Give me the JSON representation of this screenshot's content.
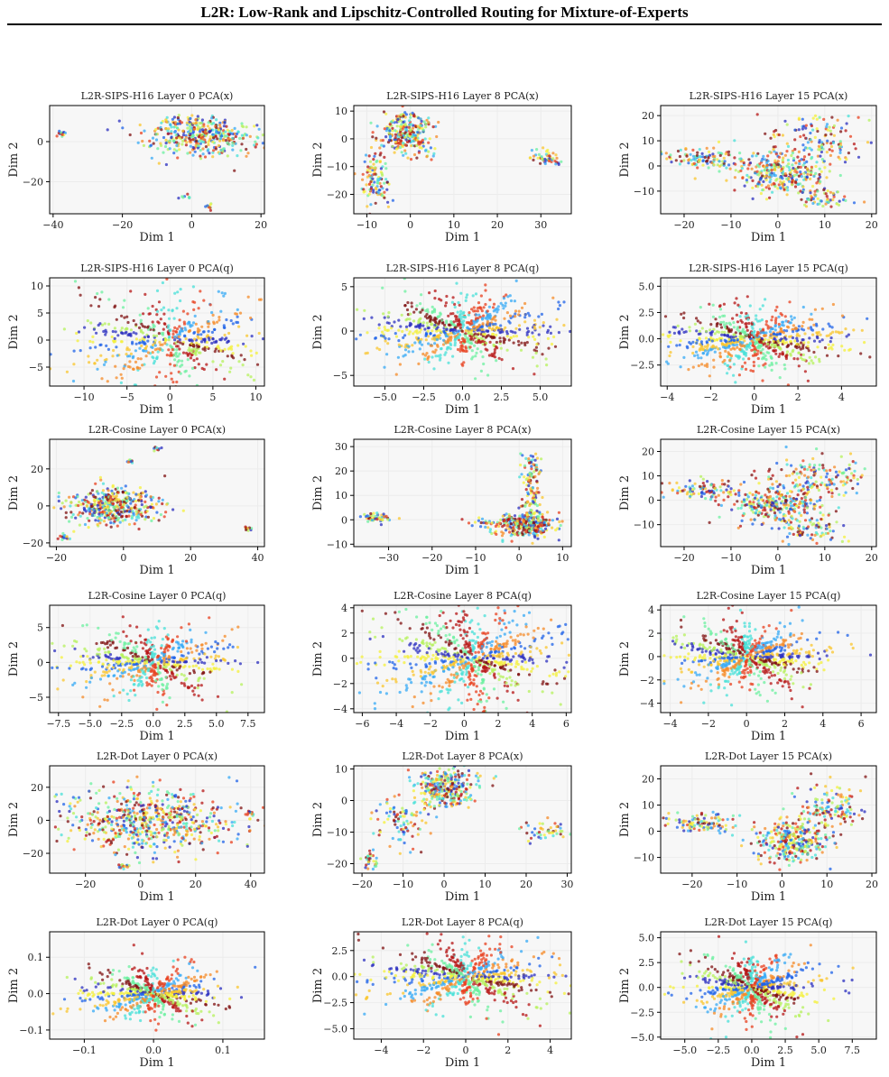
{
  "page": {
    "header_title": "L2R: Low-Rank and Lipschitz-Controlled Routing for Mixture-of-Experts"
  },
  "palette": [
    "#2b2fbf",
    "#1f63e8",
    "#35a9f5",
    "#48e0d8",
    "#6cf0a0",
    "#b5f25c",
    "#f4f03a",
    "#f9c52e",
    "#f68b28",
    "#e8401f",
    "#b51515",
    "#7f1010"
  ],
  "chart_data": [
    {
      "type": "scatter",
      "title": "L2R-SIPS-H16  Layer 0  PCA(x)",
      "xlabel": "Dim 1",
      "ylabel": "Dim 2",
      "xlim": [
        -41,
        21
      ],
      "ylim": [
        -36,
        18
      ],
      "xticks": [
        -40,
        -20,
        0,
        20
      ],
      "yticks": [
        -20,
        0
      ],
      "xtick_labels": [
        "−40",
        "−20",
        "0",
        "20"
      ],
      "ytick_labels": [
        "−20",
        "0"
      ],
      "point_clouds": [
        {
          "kind": "blob",
          "cx": 2,
          "cy": 3,
          "sx": 8,
          "sy": 5,
          "n": 420
        },
        {
          "kind": "blob",
          "cx": -38,
          "cy": 4,
          "sx": 1,
          "sy": 1,
          "n": 12
        },
        {
          "kind": "blob",
          "cx": 5,
          "cy": -32,
          "sx": 0.7,
          "sy": 0.7,
          "n": 10
        },
        {
          "kind": "blob",
          "cx": -2,
          "cy": -28,
          "sx": 0.8,
          "sy": 0.8,
          "n": 8
        }
      ]
    },
    {
      "type": "scatter",
      "title": "L2R-SIPS-H16  Layer 8  PCA(x)",
      "xlabel": "Dim 1",
      "ylabel": "Dim 2",
      "xlim": [
        -13,
        37
      ],
      "ylim": [
        -27,
        12
      ],
      "xticks": [
        -10,
        0,
        10,
        20,
        30
      ],
      "yticks": [
        -20,
        -10,
        0,
        10
      ],
      "xtick_labels": [
        "−10",
        "0",
        "10",
        "20",
        "30"
      ],
      "ytick_labels": [
        "−20",
        "−10",
        "0",
        "10"
      ],
      "point_clouds": [
        {
          "kind": "blob",
          "cx": -1,
          "cy": 2,
          "sx": 3,
          "sy": 4,
          "n": 280
        },
        {
          "kind": "blob",
          "cx": -8,
          "cy": -15,
          "sx": 1.5,
          "sy": 5,
          "n": 110
        },
        {
          "kind": "blob",
          "cx": 31,
          "cy": -7,
          "sx": 2,
          "sy": 1.5,
          "n": 50
        }
      ]
    },
    {
      "type": "scatter",
      "title": "L2R-SIPS-H16  Layer 15  PCA(x)",
      "xlabel": "Dim 1",
      "ylabel": "Dim 2",
      "xlim": [
        -25,
        21
      ],
      "ylim": [
        -19,
        24
      ],
      "xticks": [
        -20,
        -10,
        0,
        10,
        20
      ],
      "yticks": [
        -10,
        0,
        10,
        20
      ],
      "xtick_labels": [
        "−20",
        "−10",
        "0",
        "10",
        "20"
      ],
      "ytick_labels": [
        "−10",
        "0",
        "10",
        "20"
      ],
      "point_clouds": [
        {
          "kind": "blob",
          "cx": 0,
          "cy": -3,
          "sx": 5,
          "sy": 4,
          "n": 300
        },
        {
          "kind": "blob",
          "cx": -16,
          "cy": 3,
          "sx": 4,
          "sy": 2,
          "n": 110
        },
        {
          "kind": "blob",
          "cx": 8,
          "cy": 10,
          "sx": 5,
          "sy": 5,
          "n": 140
        },
        {
          "kind": "blob",
          "cx": 10,
          "cy": -13,
          "sx": 3,
          "sy": 2,
          "n": 60
        }
      ]
    },
    {
      "type": "scatter",
      "title": "L2R-SIPS-H16  Layer 0  PCA(q)",
      "xlabel": "Dim 1",
      "ylabel": "Dim 2",
      "xlim": [
        -14,
        11
      ],
      "ylim": [
        -8.5,
        11.5
      ],
      "xticks": [
        -10,
        -5,
        0,
        5,
        10
      ],
      "yticks": [
        -5,
        0,
        5,
        10
      ],
      "xtick_labels": [
        "−10",
        "−5",
        "0",
        "5",
        "10"
      ],
      "ytick_labels": [
        "−5",
        "0",
        "5",
        "10"
      ],
      "point_clouds": [
        {
          "kind": "star",
          "cx": 0,
          "cy": 0,
          "r": 7,
          "n": 600
        }
      ]
    },
    {
      "type": "scatter",
      "title": "L2R-SIPS-H16  Layer 8  PCA(q)",
      "xlabel": "Dim 1",
      "ylabel": "Dim 2",
      "xlim": [
        -7,
        7
      ],
      "ylim": [
        -6.2,
        6
      ],
      "xticks": [
        -5,
        -2.5,
        0,
        2.5,
        5
      ],
      "yticks": [
        -5,
        0,
        5
      ],
      "xtick_labels": [
        "−5.0",
        "−2.5",
        "0.0",
        "2.5",
        "5.0"
      ],
      "ytick_labels": [
        "−5",
        "0",
        "5"
      ],
      "point_clouds": [
        {
          "kind": "star",
          "cx": 0,
          "cy": 0,
          "r": 3.6,
          "n": 800
        }
      ]
    },
    {
      "type": "scatter",
      "title": "L2R-SIPS-H16  Layer 15  PCA(q)",
      "xlabel": "Dim 1",
      "ylabel": "Dim 2",
      "xlim": [
        -4.3,
        5.6
      ],
      "ylim": [
        -4.5,
        5.8
      ],
      "xticks": [
        -4,
        -2,
        0,
        2,
        4
      ],
      "yticks": [
        -2.5,
        0,
        2.5,
        5
      ],
      "xtick_labels": [
        "−4",
        "−2",
        "0",
        "2",
        "4"
      ],
      "ytick_labels": [
        "−2.5",
        "0.0",
        "2.5",
        "5.0"
      ],
      "point_clouds": [
        {
          "kind": "star",
          "cx": 0,
          "cy": 0,
          "r": 2.5,
          "n": 800
        }
      ]
    },
    {
      "type": "scatter",
      "title": "L2R-Cosine  Layer 0  PCA(x)",
      "xlabel": "Dim 1",
      "ylabel": "Dim 2",
      "xlim": [
        -22,
        42
      ],
      "ylim": [
        -22,
        36
      ],
      "xticks": [
        -20,
        0,
        20,
        40
      ],
      "yticks": [
        -20,
        0,
        20
      ],
      "xtick_labels": [
        "−20",
        "0",
        "20",
        "40"
      ],
      "ytick_labels": [
        "−20",
        "0",
        "20"
      ],
      "point_clouds": [
        {
          "kind": "blob",
          "cx": -3,
          "cy": 0,
          "sx": 7,
          "sy": 5,
          "n": 420
        },
        {
          "kind": "blob",
          "cx": -18,
          "cy": -17,
          "sx": 1,
          "sy": 1,
          "n": 14
        },
        {
          "kind": "blob",
          "cx": 37,
          "cy": -12,
          "sx": 0.6,
          "sy": 0.8,
          "n": 10
        },
        {
          "kind": "blob",
          "cx": 10,
          "cy": 31,
          "sx": 0.6,
          "sy": 0.6,
          "n": 8
        },
        {
          "kind": "blob",
          "cx": 2,
          "cy": 24,
          "sx": 0.6,
          "sy": 0.6,
          "n": 8
        }
      ]
    },
    {
      "type": "scatter",
      "title": "L2R-Cosine  Layer 8  PCA(x)",
      "xlabel": "Dim 1",
      "ylabel": "Dim 2",
      "xlim": [
        -38,
        12
      ],
      "ylim": [
        -11,
        33
      ],
      "xticks": [
        -30,
        -20,
        -10,
        0,
        10
      ],
      "yticks": [
        -10,
        0,
        10,
        20,
        30
      ],
      "xtick_labels": [
        "−30",
        "−20",
        "−10",
        "0",
        "10"
      ],
      "ytick_labels": [
        "−10",
        "0",
        "10",
        "20",
        "30"
      ],
      "point_clouds": [
        {
          "kind": "blob",
          "cx": 2,
          "cy": -2,
          "sx": 3,
          "sy": 2.5,
          "n": 300
        },
        {
          "kind": "blob",
          "cx": 3,
          "cy": 15,
          "sx": 1.3,
          "sy": 7,
          "n": 120
        },
        {
          "kind": "blob",
          "cx": -33,
          "cy": 1,
          "sx": 2,
          "sy": 1,
          "n": 50
        },
        {
          "kind": "blob",
          "cx": -6,
          "cy": -1,
          "sx": 4,
          "sy": 1,
          "n": 40
        }
      ]
    },
    {
      "type": "scatter",
      "title": "L2R-Cosine  Layer 15  PCA(x)",
      "xlabel": "Dim 1",
      "ylabel": "Dim 2",
      "xlim": [
        -25,
        21
      ],
      "ylim": [
        -19,
        25
      ],
      "xticks": [
        -20,
        -10,
        0,
        10,
        20
      ],
      "yticks": [
        -10,
        0,
        10,
        20
      ],
      "xtick_labels": [
        "−20",
        "−10",
        "0",
        "10",
        "20"
      ],
      "ytick_labels": [
        "−10",
        "0",
        "10",
        "20"
      ],
      "point_clouds": [
        {
          "kind": "blob",
          "cx": 0,
          "cy": -2,
          "sx": 5,
          "sy": 4,
          "n": 300
        },
        {
          "kind": "blob",
          "cx": -16,
          "cy": 4,
          "sx": 4,
          "sy": 2,
          "n": 100
        },
        {
          "kind": "blob",
          "cx": 9,
          "cy": 10,
          "sx": 5,
          "sy": 5,
          "n": 150
        },
        {
          "kind": "blob",
          "cx": 8,
          "cy": -12,
          "sx": 3,
          "sy": 2.5,
          "n": 70
        }
      ]
    },
    {
      "type": "scatter",
      "title": "L2R-Cosine  Layer 0  PCA(q)",
      "xlabel": "Dim 1",
      "ylabel": "Dim 2",
      "xlim": [
        -8.2,
        8.8
      ],
      "ylim": [
        -7.2,
        8.2
      ],
      "xticks": [
        -7.5,
        -5,
        -2.5,
        0,
        2.5,
        5,
        7.5
      ],
      "yticks": [
        -5,
        0,
        5
      ],
      "xtick_labels": [
        "−7.5",
        "−5.0",
        "−2.5",
        "0.0",
        "2.5",
        "5.0",
        "7.5"
      ],
      "ytick_labels": [
        "−5",
        "0",
        "5"
      ],
      "point_clouds": [
        {
          "kind": "star",
          "cx": 0,
          "cy": 0,
          "r": 4.2,
          "n": 650
        }
      ]
    },
    {
      "type": "scatter",
      "title": "L2R-Cosine  Layer 8  PCA(q)",
      "xlabel": "Dim 1",
      "ylabel": "Dim 2",
      "xlim": [
        -6.5,
        6.3
      ],
      "ylim": [
        -4.3,
        4.2
      ],
      "xticks": [
        -6,
        -4,
        -2,
        0,
        2,
        4,
        6
      ],
      "yticks": [
        -4,
        -2,
        0,
        2,
        4
      ],
      "xtick_labels": [
        "−6",
        "−4",
        "−2",
        "0",
        "2",
        "4",
        "6"
      ],
      "ytick_labels": [
        "−4",
        "−2",
        "0",
        "2",
        "4"
      ],
      "point_clouds": [
        {
          "kind": "star",
          "cx": 0.5,
          "cy": 0,
          "r": 3.2,
          "n": 800
        }
      ]
    },
    {
      "type": "scatter",
      "title": "L2R-Cosine  Layer 15  PCA(q)",
      "xlabel": "Dim 1",
      "ylabel": "Dim 2",
      "xlim": [
        -4.5,
        6.8
      ],
      "ylim": [
        -4.8,
        4.4
      ],
      "xticks": [
        -4,
        -2,
        0,
        2,
        4,
        6
      ],
      "yticks": [
        -4,
        -2,
        0,
        2,
        4
      ],
      "xtick_labels": [
        "−4",
        "−2",
        "0",
        "2",
        "4",
        "6"
      ],
      "ytick_labels": [
        "−4",
        "−2",
        "0",
        "2",
        "4"
      ],
      "point_clouds": [
        {
          "kind": "star",
          "cx": 0,
          "cy": 0,
          "r": 2.4,
          "n": 800
        }
      ]
    },
    {
      "type": "scatter",
      "title": "L2R-Dot  Layer 0  PCA(x)",
      "xlabel": "Dim 1",
      "ylabel": "Dim 2",
      "xlim": [
        -33,
        45
      ],
      "ylim": [
        -32,
        33
      ],
      "xticks": [
        -20,
        0,
        20,
        40
      ],
      "yticks": [
        -20,
        0,
        20
      ],
      "xtick_labels": [
        "−20",
        "0",
        "20",
        "40"
      ],
      "ytick_labels": [
        "−20",
        "0",
        "20"
      ],
      "point_clouds": [
        {
          "kind": "blob",
          "cx": 4,
          "cy": 0,
          "sx": 16,
          "sy": 9,
          "n": 650
        },
        {
          "kind": "blob",
          "cx": -6,
          "cy": -28,
          "sx": 2,
          "sy": 0.7,
          "n": 15
        },
        {
          "kind": "blob",
          "cx": 40,
          "cy": 5,
          "sx": 1,
          "sy": 1,
          "n": 12
        }
      ]
    },
    {
      "type": "scatter",
      "title": "L2R-Dot  Layer 8  PCA(x)",
      "xlabel": "Dim 1",
      "ylabel": "Dim 2",
      "xlim": [
        -22,
        31
      ],
      "ylim": [
        -23,
        11
      ],
      "xticks": [
        -20,
        -10,
        0,
        10,
        20,
        30
      ],
      "yticks": [
        -20,
        -10,
        0,
        10
      ],
      "xtick_labels": [
        "−20",
        "−10",
        "0",
        "10",
        "20",
        "30"
      ],
      "ytick_labels": [
        "−20",
        "−10",
        "0",
        "10"
      ],
      "point_clouds": [
        {
          "kind": "blob",
          "cx": 0,
          "cy": 4,
          "sx": 4,
          "sy": 3,
          "n": 300
        },
        {
          "kind": "blob",
          "cx": -10,
          "cy": -6,
          "sx": 3,
          "sy": 4,
          "n": 90
        },
        {
          "kind": "blob",
          "cx": -18,
          "cy": -19,
          "sx": 1,
          "sy": 1.5,
          "n": 30
        },
        {
          "kind": "blob",
          "cx": 26,
          "cy": -10,
          "sx": 3,
          "sy": 1.5,
          "n": 50
        }
      ]
    },
    {
      "type": "scatter",
      "title": "L2R-Dot  Layer 15  PCA(x)",
      "xlabel": "Dim 1",
      "ylabel": "Dim 2",
      "xlim": [
        -27,
        21
      ],
      "ylim": [
        -16,
        25
      ],
      "xticks": [
        -20,
        -10,
        0,
        10,
        20
      ],
      "yticks": [
        -10,
        0,
        10,
        20
      ],
      "xtick_labels": [
        "−20",
        "−10",
        "0",
        "10",
        "20"
      ],
      "ytick_labels": [
        "−10",
        "0",
        "10",
        "20"
      ],
      "point_clouds": [
        {
          "kind": "blob",
          "cx": 2,
          "cy": -4,
          "sx": 4,
          "sy": 4,
          "n": 300
        },
        {
          "kind": "blob",
          "cx": -18,
          "cy": 3,
          "sx": 4,
          "sy": 2,
          "n": 100
        },
        {
          "kind": "blob",
          "cx": 10,
          "cy": 8,
          "sx": 4,
          "sy": 5,
          "n": 150
        }
      ]
    },
    {
      "type": "scatter",
      "title": "L2R-Dot  Layer 0  PCA(q)",
      "xlabel": "Dim 1",
      "ylabel": "Dim 2",
      "xlim": [
        -0.15,
        0.16
      ],
      "ylim": [
        -0.125,
        0.17
      ],
      "xticks": [
        -0.1,
        0,
        0.1
      ],
      "yticks": [
        -0.1,
        0,
        0.1
      ],
      "xtick_labels": [
        "−0.1",
        "0.0",
        "0.1"
      ],
      "ytick_labels": [
        "−0.1",
        "0.0",
        "0.1"
      ],
      "point_clouds": [
        {
          "kind": "star",
          "cx": 0,
          "cy": 0,
          "r": 0.06,
          "n": 700
        }
      ]
    },
    {
      "type": "scatter",
      "title": "L2R-Dot  Layer 8  PCA(q)",
      "xlabel": "Dim 1",
      "ylabel": "Dim 2",
      "xlim": [
        -5.3,
        5
      ],
      "ylim": [
        -6,
        4.3
      ],
      "xticks": [
        -4,
        -2,
        0,
        2,
        4
      ],
      "yticks": [
        -5,
        -2.5,
        0,
        2.5
      ],
      "xtick_labels": [
        "−4",
        "−2",
        "0",
        "2",
        "4"
      ],
      "ytick_labels": [
        "−5.0",
        "−2.5",
        "0.0",
        "2.5"
      ],
      "point_clouds": [
        {
          "kind": "star",
          "cx": 0,
          "cy": 0,
          "r": 2.6,
          "n": 800
        }
      ]
    },
    {
      "type": "scatter",
      "title": "L2R-Dot  Layer 15  PCA(q)",
      "xlabel": "Dim 1",
      "ylabel": "Dim 2",
      "xlim": [
        -6.8,
        9.3
      ],
      "ylim": [
        -5.2,
        5.6
      ],
      "xticks": [
        -5,
        -2.5,
        0,
        2.5,
        5,
        7.5
      ],
      "yticks": [
        -5,
        -2.5,
        0,
        2.5,
        5
      ],
      "xtick_labels": [
        "−5.0",
        "−2.5",
        "0.0",
        "2.5",
        "5.0",
        "7.5"
      ],
      "ytick_labels": [
        "−5.0",
        "−2.5",
        "0.0",
        "2.5",
        "5.0"
      ],
      "point_clouds": [
        {
          "kind": "star",
          "cx": 0,
          "cy": 0,
          "r": 2.6,
          "n": 800
        }
      ]
    }
  ]
}
